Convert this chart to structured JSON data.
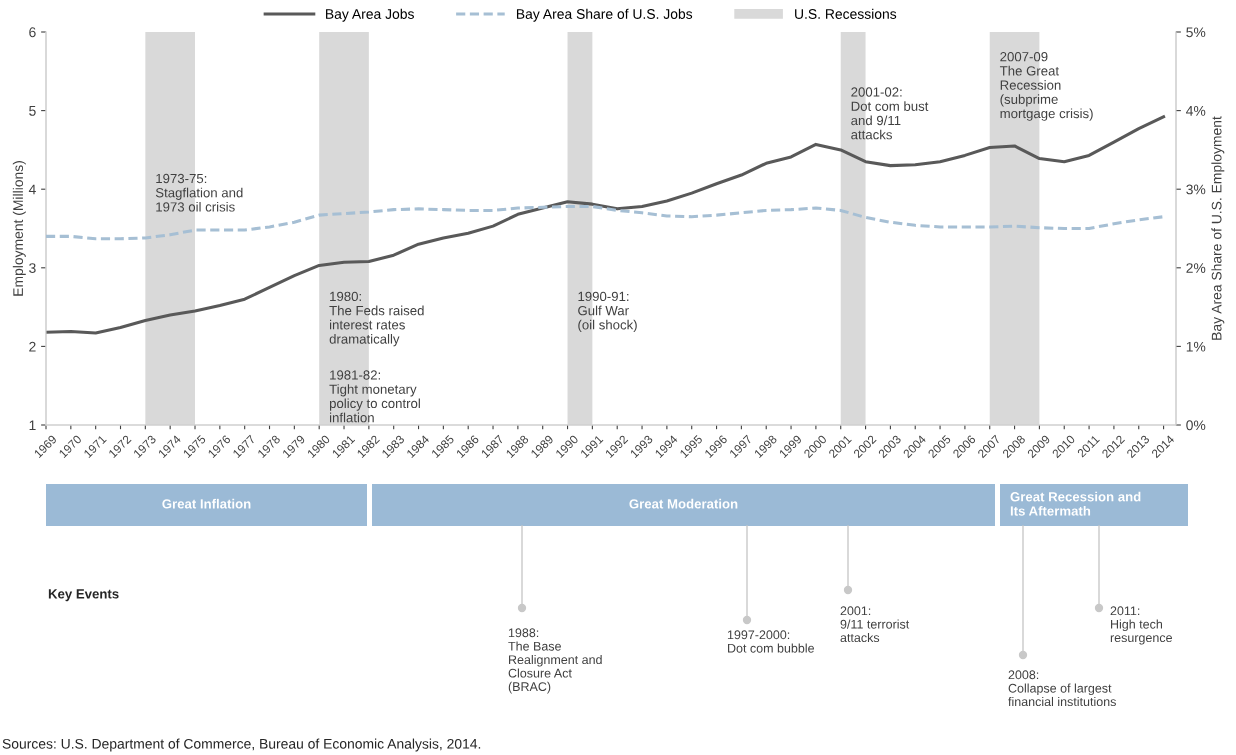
{
  "chart_data": {
    "type": "line",
    "x": [
      1969,
      1970,
      1971,
      1972,
      1973,
      1974,
      1975,
      1976,
      1977,
      1978,
      1979,
      1980,
      1981,
      1982,
      1983,
      1984,
      1985,
      1986,
      1987,
      1988,
      1989,
      1990,
      1991,
      1992,
      1993,
      1994,
      1995,
      1996,
      1997,
      1998,
      1999,
      2000,
      2001,
      2002,
      2003,
      2004,
      2005,
      2006,
      2007,
      2008,
      2009,
      2010,
      2011,
      2012,
      2013,
      2014
    ],
    "series": [
      {
        "name": "Bay Area Jobs",
        "color": "#595959",
        "line_style": "solid",
        "values": [
          2.18,
          2.19,
          2.17,
          2.24,
          2.33,
          2.4,
          2.45,
          2.52,
          2.6,
          2.75,
          2.9,
          3.03,
          3.07,
          3.08,
          3.16,
          3.3,
          3.38,
          3.44,
          3.53,
          3.68,
          3.76,
          3.84,
          3.81,
          3.75,
          3.78,
          3.85,
          3.95,
          4.07,
          4.18,
          4.33,
          4.41,
          4.57,
          4.5,
          4.35,
          4.3,
          4.31,
          4.35,
          4.43,
          4.53,
          4.55,
          4.39,
          4.35,
          4.43,
          4.6,
          4.77,
          4.92
        ]
      },
      {
        "name": "Bay Area Share of U.S. Jobs",
        "color": "#a6bfd4",
        "line_style": "dashed",
        "axis": "y2",
        "values": [
          2.4,
          2.4,
          2.37,
          2.37,
          2.38,
          2.42,
          2.48,
          2.48,
          2.48,
          2.52,
          2.58,
          2.67,
          2.69,
          2.71,
          2.74,
          2.75,
          2.74,
          2.73,
          2.73,
          2.76,
          2.77,
          2.78,
          2.78,
          2.73,
          2.7,
          2.66,
          2.65,
          2.67,
          2.7,
          2.73,
          2.74,
          2.76,
          2.73,
          2.64,
          2.58,
          2.54,
          2.52,
          2.52,
          2.52,
          2.53,
          2.51,
          2.5,
          2.5,
          2.56,
          2.61,
          2.65
        ]
      }
    ],
    "xlim": [
      1969,
      2014.5
    ],
    "xticks": [
      1969,
      1970,
      1971,
      1972,
      1973,
      1974,
      1975,
      1976,
      1977,
      1978,
      1979,
      1980,
      1981,
      1982,
      1983,
      1984,
      1985,
      1986,
      1987,
      1988,
      1989,
      1990,
      1991,
      1992,
      1993,
      1994,
      1995,
      1996,
      1997,
      1998,
      1999,
      2000,
      2001,
      2002,
      2003,
      2004,
      2005,
      2006,
      2007,
      2008,
      2009,
      2010,
      2011,
      2012,
      2013,
      2014
    ],
    "ylim": [
      1,
      6
    ],
    "yticks": [
      1,
      2,
      3,
      4,
      5,
      6
    ],
    "y2lim": [
      0,
      5
    ],
    "y2ticks": [
      {
        "value": 0,
        "label": "0%"
      },
      {
        "value": 1,
        "label": "1%"
      },
      {
        "value": 2,
        "label": "2%"
      },
      {
        "value": 3,
        "label": "3%"
      },
      {
        "value": 4,
        "label": "4%"
      },
      {
        "value": 5,
        "label": "5%"
      }
    ],
    "ylabel": "Employment (Millions)",
    "y2label": "Bay Area Share of U.S. Employment",
    "bands": [
      {
        "axis": "x",
        "from": 1973,
        "to": 1975,
        "label": "U.S. Recessions",
        "color": "#d9d9d9"
      },
      {
        "axis": "x",
        "from": 1980,
        "to": 1982,
        "color": "#d9d9d9"
      },
      {
        "axis": "x",
        "from": 1990,
        "to": 1991,
        "color": "#d9d9d9"
      },
      {
        "axis": "x",
        "from": 2001,
        "to": 2002,
        "color": "#d9d9d9"
      },
      {
        "axis": "x",
        "from": 2007,
        "to": 2009,
        "color": "#d9d9d9"
      }
    ],
    "annotations": [
      {
        "text": "1973-75:\nStagflation and\n1973 oil crisis",
        "x": 1973,
        "y": 4.2
      },
      {
        "text": "1980:\nThe Feds raised\ninterest rates\ndramatically",
        "x": 1980,
        "y": 2.7
      },
      {
        "text": "1981-82:\nTight monetary\npolicy to control\ninflation",
        "x": 1980,
        "y": 1.7
      },
      {
        "text": "1990-91:\nGulf War\n(oil shock)",
        "x": 1990,
        "y": 2.7
      },
      {
        "text": "2001-02:\nDot com bust\nand 9/11\nattacks",
        "x": 2001,
        "y": 5.3
      },
      {
        "text": "2007-09\nThe Great\nRecession\n(subprime\nmortgage crisis)",
        "x": 2007,
        "y": 5.75
      },
      "Great Inflation",
      "Great Moderation",
      "Great Recession and\nIts Aftermath",
      "Key Events",
      "1988:\nThe Base\nRealignment and\nClosure Act\n(BRAC)",
      "1997-2000:\nDot com bubble",
      "2001:\n9/11 terrorist\nattacks",
      "2008:\nCollapse of largest\nfinancial institutions",
      "2011:\nHigh tech\nresurgence",
      "Sources: U.S. Department of Commerce, Bureau of Economic Analysis, 2014."
    ],
    "legend": "top",
    "grid": false
  }
}
